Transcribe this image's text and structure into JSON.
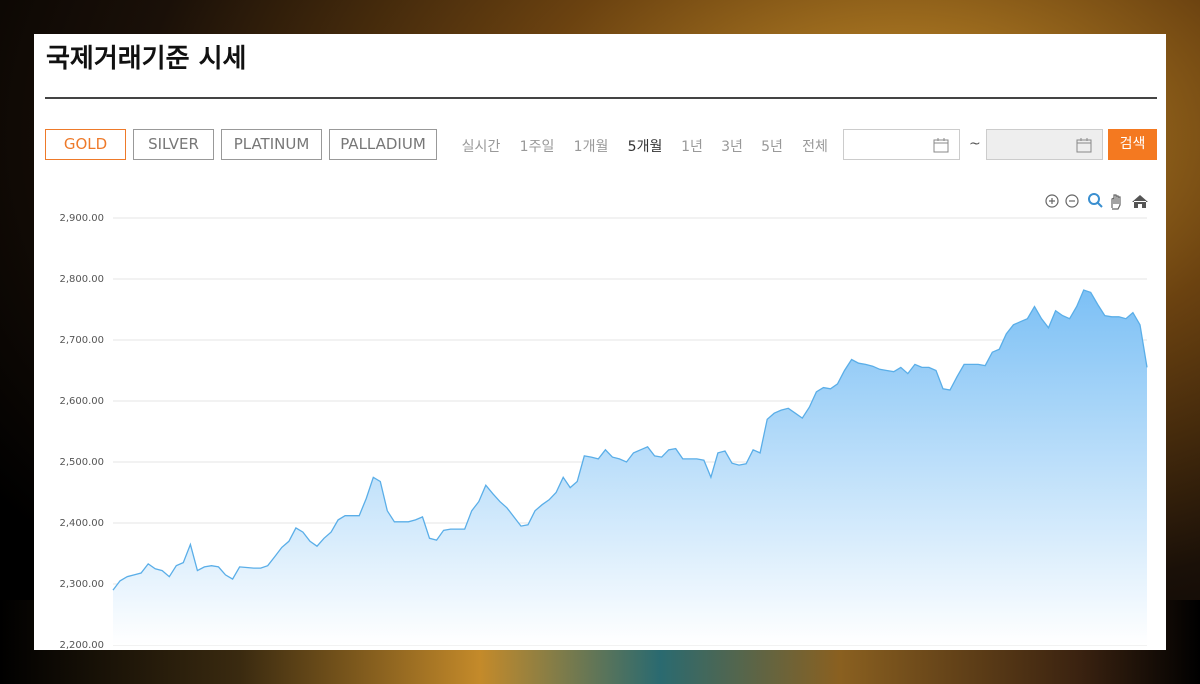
{
  "header": {
    "title": "국제거래기준 시세"
  },
  "metals": [
    "GOLD",
    "SILVER",
    "PLATINUM",
    "PALLADIUM"
  ],
  "periods": [
    "실시간",
    "1주일",
    "1개월",
    "5개월",
    "1년",
    "3년",
    "5년",
    "전체"
  ],
  "date_separator": "~",
  "search_button": "검색",
  "chart_data": {
    "type": "area",
    "color": "#5aaee8",
    "grid": true,
    "ylim": [
      2200,
      2900
    ],
    "yticks": [
      {
        "value": 2200,
        "label": "2,200.00"
      },
      {
        "value": 2300,
        "label": "2,300.00"
      },
      {
        "value": 2400,
        "label": "2,400.00"
      },
      {
        "value": 2500,
        "label": "2,500.00"
      },
      {
        "value": 2600,
        "label": "2,600.00"
      },
      {
        "value": 2700,
        "label": "2,700.00"
      },
      {
        "value": 2800,
        "label": "2,800.00"
      },
      {
        "value": 2900,
        "label": "2,900.00"
      }
    ],
    "values": [
      2290,
      2305,
      2312,
      2315,
      2318,
      2333,
      2325,
      2322,
      2312,
      2330,
      2335,
      2365,
      2322,
      2328,
      2330,
      2328,
      2315,
      2308,
      2328,
      2327,
      2326,
      2326,
      2330,
      2345,
      2360,
      2370,
      2392,
      2385,
      2370,
      2362,
      2375,
      2385,
      2405,
      2412,
      2412,
      2412,
      2440,
      2475,
      2468,
      2420,
      2402,
      2402,
      2402,
      2405,
      2410,
      2375,
      2372,
      2388,
      2390,
      2390,
      2390,
      2420,
      2435,
      2462,
      2448,
      2435,
      2425,
      2410,
      2395,
      2397,
      2420,
      2430,
      2438,
      2450,
      2475,
      2458,
      2468,
      2510,
      2508,
      2505,
      2520,
      2508,
      2505,
      2500,
      2515,
      2520,
      2525,
      2510,
      2508,
      2520,
      2522,
      2505,
      2505,
      2505,
      2503,
      2475,
      2515,
      2518,
      2498,
      2495,
      2497,
      2520,
      2515,
      2570,
      2580,
      2585,
      2588,
      2580,
      2572,
      2590,
      2615,
      2622,
      2620,
      2628,
      2650,
      2668,
      2662,
      2660,
      2657,
      2652,
      2650,
      2648,
      2655,
      2645,
      2660,
      2655,
      2655,
      2650,
      2620,
      2618,
      2640,
      2660,
      2660,
      2660,
      2658,
      2680,
      2685,
      2710,
      2725,
      2730,
      2735,
      2755,
      2735,
      2720,
      2748,
      2740,
      2735,
      2755,
      2782,
      2778,
      2758,
      2740,
      2738,
      2738,
      2735,
      2745,
      2725,
      2655
    ]
  }
}
